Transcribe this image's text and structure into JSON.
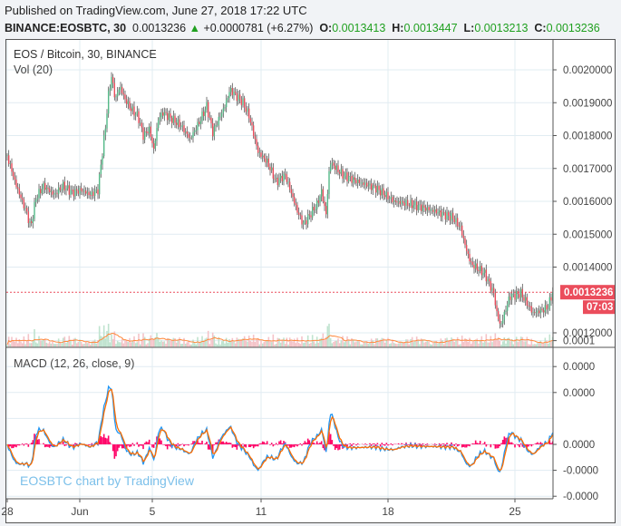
{
  "header": {
    "published": "Published on TradingView.com, June 27, 2018 17:22 UTC",
    "symbol": "BINANCE:EOSBTC, 30",
    "last": "0.0013236",
    "change": "+0.0000781 (+6.27%)",
    "o_label": "O:",
    "o": "0.0013413",
    "h_label": "H:",
    "h": "0.0013447",
    "l_label": "L:",
    "l": "0.0013213",
    "c_label": "C:",
    "c": "0.0013236"
  },
  "main_pane": {
    "title": "EOS / Bitcoin, 30, BINANCE",
    "vol_label": "Vol (20)",
    "last_price_tag": "0.0013236",
    "countdown_tag": "07:03"
  },
  "macd_pane": {
    "title": "MACD (12, 26, close, 9)"
  },
  "watermark": "EOSBTC chart by TradingView",
  "colors": {
    "up": "#53b987",
    "down": "#eb4d5c",
    "wick": "#555555",
    "macd": "#2196f3",
    "signal": "#ff6d00",
    "histogram": "#ff0066",
    "price_tag": "#eb4d5c",
    "volume_ma": "#ff8a3d"
  },
  "chart_data": [
    {
      "type": "candlestick",
      "interval": "30",
      "ylim": [
        0.00116,
        0.00209
      ],
      "y_ticks": [
        "0.0020000",
        "0.0019000",
        "0.0018000",
        "0.0017000",
        "0.0016000",
        "0.0015000",
        "0.0014000",
        "0.0012000"
      ],
      "x_ticks": [
        "28",
        "Jun",
        "5",
        "11",
        "18",
        "25"
      ],
      "x_tick_dates": [
        "2018-05-28",
        "2018-06-01",
        "2018-06-05",
        "2018-06-11",
        "2018-06-18",
        "2018-06-25"
      ],
      "grid": true,
      "close_path": [
        [
          "2018-05-28 00:00",
          0.001738
        ],
        [
          "2018-05-28 12:00",
          0.001647
        ],
        [
          "2018-05-29 02:00",
          0.001564
        ],
        [
          "2018-05-29 07:00",
          0.00152
        ],
        [
          "2018-05-29 14:00",
          0.00161
        ],
        [
          "2018-05-30 00:00",
          0.001647
        ],
        [
          "2018-05-30 14:00",
          0.00162
        ],
        [
          "2018-05-31 02:00",
          0.001647
        ],
        [
          "2018-05-31 14:00",
          0.001627
        ],
        [
          "2018-06-01 02:00",
          0.001634
        ],
        [
          "2018-06-01 14:00",
          0.00162
        ],
        [
          "2018-06-02 00:00",
          0.001634
        ],
        [
          "2018-06-02 05:00",
          0.00173
        ],
        [
          "2018-06-02 10:00",
          0.001826
        ],
        [
          "2018-06-02 14:00",
          0.001923
        ],
        [
          "2018-06-02 18:00",
          0.00198
        ],
        [
          "2018-06-02 23:00",
          0.00191
        ],
        [
          "2018-06-03 05:00",
          0.00195
        ],
        [
          "2018-06-03 12:00",
          0.00191
        ],
        [
          "2018-06-03 20:00",
          0.00188
        ],
        [
          "2018-06-04 05:00",
          0.00186
        ],
        [
          "2018-06-04 12:00",
          0.0018
        ],
        [
          "2018-06-04 20:00",
          0.00182
        ],
        [
          "2018-06-05 02:00",
          0.001757
        ],
        [
          "2018-06-05 08:00",
          0.00185
        ],
        [
          "2018-06-05 14:00",
          0.00187
        ],
        [
          "2018-06-06 02:00",
          0.00185
        ],
        [
          "2018-06-06 14:00",
          0.00183
        ],
        [
          "2018-06-07 02:00",
          0.00179
        ],
        [
          "2018-06-07 14:00",
          0.00184
        ],
        [
          "2018-06-08 00:00",
          0.00189
        ],
        [
          "2018-06-08 08:00",
          0.00181
        ],
        [
          "2018-06-09 00:00",
          0.00189
        ],
        [
          "2018-06-09 07:00",
          0.00194
        ],
        [
          "2018-06-10 00:00",
          0.0019
        ],
        [
          "2018-06-10 08:00",
          0.00186
        ],
        [
          "2018-06-10 20:00",
          0.00175
        ],
        [
          "2018-06-11 08:00",
          0.00172
        ],
        [
          "2018-06-11 20:00",
          0.00166
        ],
        [
          "2018-06-12 08:00",
          0.00168
        ],
        [
          "2018-06-13 00:00",
          0.00157
        ],
        [
          "2018-06-13 08:00",
          0.00153
        ],
        [
          "2018-06-14 02:00",
          0.00159
        ],
        [
          "2018-06-14 08:00",
          0.00163
        ],
        [
          "2018-06-14 14:00",
          0.00156
        ],
        [
          "2018-06-14 19:00",
          0.00172
        ],
        [
          "2018-06-15 12:00",
          0.00168
        ],
        [
          "2018-06-16 08:00",
          0.00166
        ],
        [
          "2018-06-17 08:00",
          0.00164
        ],
        [
          "2018-06-18 08:00",
          0.0016
        ],
        [
          "2018-06-19 08:00",
          0.00159
        ],
        [
          "2018-06-20 14:00",
          0.00157
        ],
        [
          "2018-06-21 14:00",
          0.00155
        ],
        [
          "2018-06-22 00:00",
          0.00152
        ],
        [
          "2018-06-22 08:00",
          0.00145
        ],
        [
          "2018-06-22 14:00",
          0.00141
        ],
        [
          "2018-06-23 08:00",
          0.00138
        ],
        [
          "2018-06-23 20:00",
          0.00132
        ],
        [
          "2018-06-24 00:00",
          0.00126
        ],
        [
          "2018-06-24 05:00",
          0.00122
        ],
        [
          "2018-06-24 17:00",
          0.00131
        ],
        [
          "2018-06-25 08:00",
          0.00132
        ],
        [
          "2018-06-26 00:00",
          0.00126
        ],
        [
          "2018-06-26 14:00",
          0.00127
        ],
        [
          "2018-06-26 20:00",
          0.00128
        ],
        [
          "2018-06-27 02:00",
          0.0013236
        ]
      ]
    },
    {
      "type": "line",
      "title": "MACD (12, 26, close, 9)",
      "series": [
        "MACD",
        "Signal",
        "Histogram"
      ],
      "ylim": [
        -5.7e-05,
        0.00011
      ],
      "y_ticks": [
        "0.0001",
        "0.0000",
        "0.0000",
        "0.0000",
        "-0.0000",
        "-0.0000"
      ],
      "grid": true
    }
  ]
}
